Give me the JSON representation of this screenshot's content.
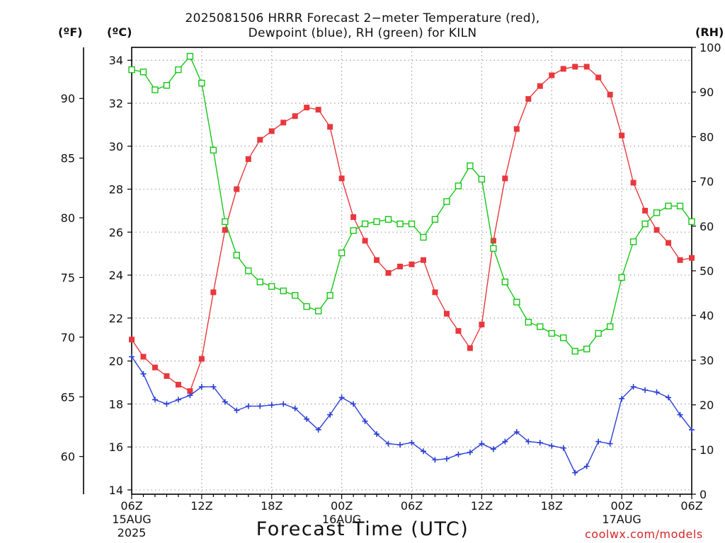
{
  "title_lines": [
    "2025081506 HRRR Forecast 2−meter Temperature (red),",
    "Dewpoint (blue), RH (green) for KILN"
  ],
  "credit": "coolwx.com/models",
  "chart_data": {
    "type": "line",
    "title": "2025081506 HRRR Forecast 2−meter Temperature (red), Dewpoint (blue), RH (green) for KILN",
    "xlabel": "Forecast Time (UTC)",
    "x_unit": "forecast hour from 2025-08-15 06Z",
    "xlim": [
      0,
      48
    ],
    "x_ticks": [
      {
        "hour": 0,
        "label": "06Z",
        "sub": [
          "15AUG",
          "2025"
        ]
      },
      {
        "hour": 6,
        "label": "12Z",
        "sub": []
      },
      {
        "hour": 12,
        "label": "18Z",
        "sub": []
      },
      {
        "hour": 18,
        "label": "00Z",
        "sub": [
          "16AUG"
        ]
      },
      {
        "hour": 24,
        "label": "06Z",
        "sub": []
      },
      {
        "hour": 30,
        "label": "12Z",
        "sub": []
      },
      {
        "hour": 36,
        "label": "18Z",
        "sub": []
      },
      {
        "hour": 42,
        "label": "00Z",
        "sub": [
          "17AUG"
        ]
      },
      {
        "hour": 48,
        "label": "06Z",
        "sub": []
      }
    ],
    "y_left_c": {
      "label": "(ºC)",
      "lim": [
        13.8,
        34.6
      ],
      "ticks": [
        14,
        16,
        18,
        20,
        22,
        24,
        26,
        28,
        30,
        32,
        34
      ]
    },
    "y_left_f": {
      "label": "(ºF)",
      "ticks": [
        60,
        65,
        70,
        75,
        80,
        85,
        90
      ]
    },
    "y_right": {
      "label": "(RH)",
      "lim": [
        0,
        100
      ],
      "ticks": [
        0,
        10,
        20,
        30,
        40,
        50,
        60,
        70,
        80,
        90,
        100
      ]
    },
    "grid": true,
    "colors": {
      "temperature": "#e8383d",
      "dewpoint": "#2b3fd6",
      "rh": "#17c617",
      "grid": "#a0a0a0"
    },
    "series": [
      {
        "key": "temperature",
        "axis": "celsius",
        "marker": "filled-square",
        "values": [
          21.0,
          20.2,
          19.7,
          19.3,
          18.9,
          18.6,
          20.1,
          23.2,
          26.1,
          28.0,
          29.4,
          30.3,
          30.7,
          31.1,
          31.4,
          31.8,
          31.7,
          30.9,
          28.5,
          26.7,
          25.6,
          24.7,
          24.1,
          24.4,
          24.5,
          24.7,
          23.2,
          22.2,
          21.4,
          20.6,
          21.7,
          25.6,
          28.5,
          30.8,
          32.2,
          32.8,
          33.3,
          33.6,
          33.7,
          33.7,
          33.2,
          32.4,
          30.5,
          28.3,
          27.0,
          26.1,
          25.5,
          24.7,
          24.8
        ]
      },
      {
        "key": "dewpoint",
        "axis": "celsius",
        "marker": "plus",
        "values": [
          20.2,
          19.4,
          18.2,
          18.0,
          18.2,
          18.4,
          18.8,
          18.8,
          18.1,
          17.7,
          17.9,
          17.9,
          17.95,
          18.0,
          17.8,
          17.3,
          16.8,
          17.5,
          18.3,
          18.0,
          17.2,
          16.6,
          16.15,
          16.1,
          16.2,
          15.8,
          15.4,
          15.45,
          15.65,
          15.75,
          16.15,
          15.9,
          16.25,
          16.7,
          16.25,
          16.2,
          16.05,
          15.95,
          14.8,
          15.1,
          16.25,
          16.15,
          18.25,
          18.8,
          18.65,
          18.55,
          18.3,
          17.5,
          16.8
        ]
      },
      {
        "key": "rh",
        "axis": "percent",
        "marker": "open-square",
        "values": [
          95,
          94.5,
          90.5,
          91.5,
          95,
          98,
          92,
          77,
          61,
          53.5,
          50,
          47.5,
          46.5,
          45.5,
          44.5,
          42,
          41,
          44.5,
          54,
          59,
          60.5,
          61,
          61.5,
          60.5,
          60.5,
          57.5,
          61.5,
          65.5,
          69,
          73.5,
          70.5,
          55,
          47.5,
          43,
          38.5,
          37.5,
          36,
          35,
          32,
          32.5,
          36,
          37.5,
          48.5,
          56.5,
          60.5,
          63,
          64.5,
          64.5,
          61
        ]
      }
    ]
  }
}
